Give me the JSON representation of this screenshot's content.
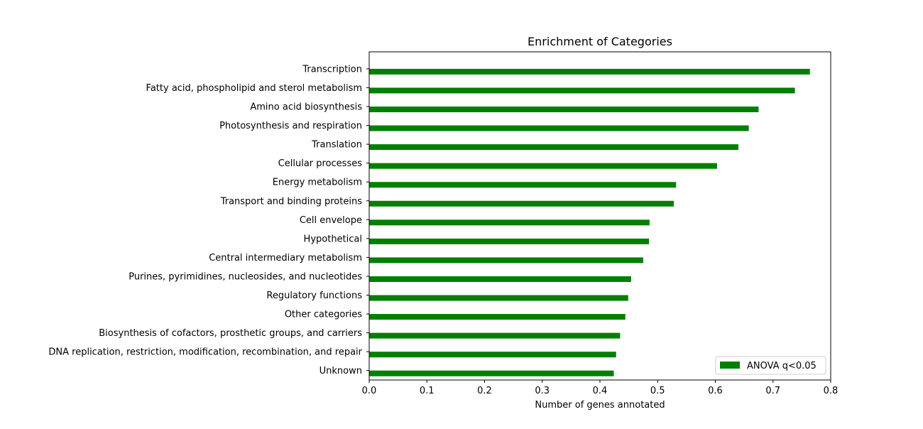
{
  "chart_data": {
    "type": "bar",
    "orientation": "horizontal",
    "title": "Enrichment of Categories",
    "xlabel": "Number of genes annotated",
    "ylabel": "",
    "xlim": [
      0.0,
      0.8
    ],
    "xticks": [
      "0.0",
      "0.1",
      "0.2",
      "0.3",
      "0.4",
      "0.5",
      "0.6",
      "0.7",
      "0.8"
    ],
    "xtick_values": [
      0.0,
      0.1,
      0.2,
      0.3,
      0.4,
      0.5,
      0.6,
      0.7,
      0.8
    ],
    "grid": false,
    "legend_position": "bottom-right",
    "bar_color": "#008000",
    "categories": [
      "Transcription",
      "Fatty acid, phospholipid and sterol metabolism",
      "Amino acid biosynthesis",
      "Photosynthesis and respiration",
      "Translation",
      "Cellular processes",
      "Energy metabolism",
      "Transport and binding proteins",
      "Cell envelope",
      "Hypothetical",
      "Central intermediary metabolism",
      "Purines, pyrimidines, nucleosides, and nucleotides",
      "Regulatory functions",
      "Other categories",
      "Biosynthesis of cofactors, prosthetic groups, and carriers",
      "DNA replication, restriction, modification, recombination, and repair",
      "Unknown"
    ],
    "series": [
      {
        "name": "ANOVA q<0.05",
        "values": [
          0.764,
          0.738,
          0.675,
          0.658,
          0.64,
          0.603,
          0.532,
          0.528,
          0.486,
          0.485,
          0.475,
          0.454,
          0.449,
          0.444,
          0.435,
          0.428,
          0.424
        ]
      }
    ]
  }
}
